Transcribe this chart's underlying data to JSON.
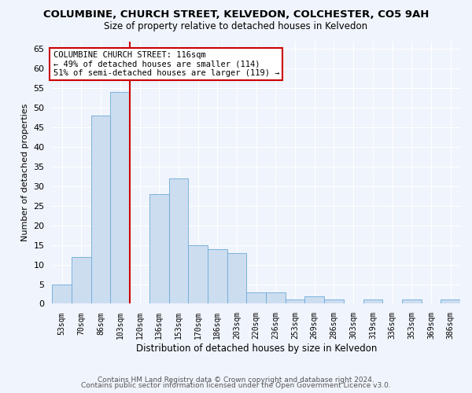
{
  "title": "COLUMBINE, CHURCH STREET, KELVEDON, COLCHESTER, CO5 9AH",
  "subtitle": "Size of property relative to detached houses in Kelvedon",
  "xlabel": "Distribution of detached houses by size in Kelvedon",
  "ylabel": "Number of detached properties",
  "categories": [
    "53sqm",
    "70sqm",
    "86sqm",
    "103sqm",
    "120sqm",
    "136sqm",
    "153sqm",
    "170sqm",
    "186sqm",
    "203sqm",
    "220sqm",
    "236sqm",
    "253sqm",
    "269sqm",
    "286sqm",
    "303sqm",
    "319sqm",
    "336sqm",
    "353sqm",
    "369sqm",
    "386sqm"
  ],
  "values": [
    5,
    12,
    48,
    54,
    0,
    28,
    32,
    15,
    14,
    13,
    3,
    3,
    1,
    2,
    1,
    0,
    1,
    0,
    1,
    0,
    1
  ],
  "bar_color": "#ccddf0",
  "bar_edge_color": "#6baad8",
  "reference_line_color": "#cc0000",
  "annotation_text": "COLUMBINE CHURCH STREET: 116sqm\n← 49% of detached houses are smaller (114)\n51% of semi-detached houses are larger (119) →",
  "ylim": [
    0,
    67
  ],
  "yticks": [
    0,
    5,
    10,
    15,
    20,
    25,
    30,
    35,
    40,
    45,
    50,
    55,
    60,
    65
  ],
  "footer1": "Contains HM Land Registry data © Crown copyright and database right 2024.",
  "footer2": "Contains public sector information licensed under the Open Government Licence v3.0.",
  "bg_color": "#f0f4fc",
  "plot_bg_color": "#f0f4fc",
  "grid_color": "#ffffff",
  "title_fontsize": 9.5,
  "subtitle_fontsize": 8.5
}
